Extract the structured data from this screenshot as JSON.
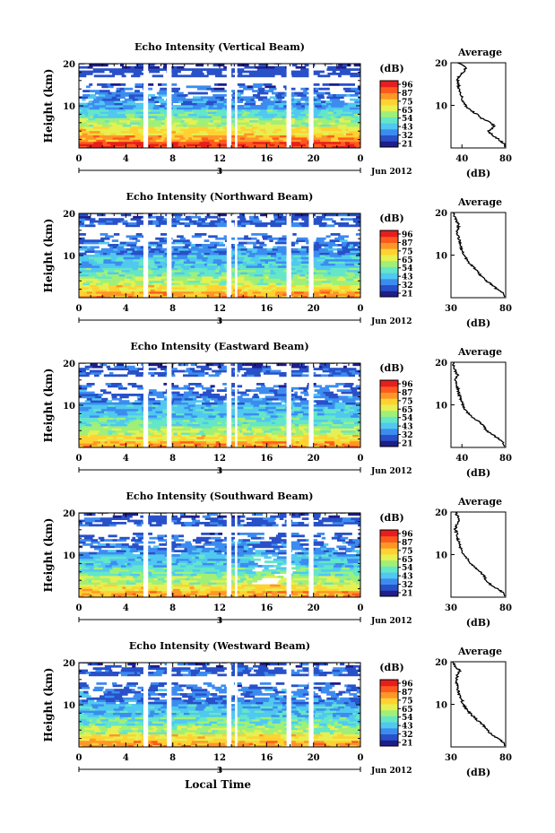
{
  "figure": {
    "xlabel": "Local Time",
    "date_label": "Jun 2012",
    "day_label": "3"
  },
  "colorbar": {
    "unit": "(dB)",
    "colors": [
      "#1e1e8c",
      "#2850c8",
      "#3c8cf0",
      "#50c8f0",
      "#64e6c8",
      "#a0f078",
      "#e6f050",
      "#ffd232",
      "#ff9628",
      "#ff5a1e",
      "#e61e1e"
    ]
  },
  "chart_data": [
    {
      "type": "heatmap",
      "title": "Echo Intensity (Vertical Beam)",
      "ylabel": "Height (km)",
      "xlim": [
        0,
        24
      ],
      "ylim": [
        0,
        20
      ],
      "xticks": [
        "0",
        "4",
        "8",
        "12",
        "16",
        "20",
        "0"
      ],
      "yticks": [
        "10",
        "20"
      ],
      "colorbar": {
        "unit": "(dB)",
        "ticks": [
          "96",
          "87",
          "75",
          "65",
          "54",
          "43",
          "32",
          "21"
        ]
      },
      "data_gaps_hours": [
        [
          5.5,
          5.9
        ],
        [
          7.5,
          7.9
        ],
        [
          12.6,
          13.0
        ],
        [
          13.3,
          13.5
        ],
        [
          17.7,
          18.1
        ],
        [
          19.6,
          20.0
        ]
      ],
      "profile": {
        "title": "Average",
        "xlabel": "(dB)",
        "xlim": [
          30,
          80
        ],
        "xticks": [
          "40",
          "80"
        ],
        "yticks": [
          "10",
          "20"
        ],
        "height_km": [
          1,
          2,
          3,
          4,
          5,
          6,
          7,
          8,
          9,
          10,
          11,
          12,
          13,
          14,
          15,
          16,
          17,
          18,
          19,
          20
        ],
        "db": [
          78,
          74,
          68,
          64,
          70,
          66,
          58,
          53,
          47,
          43,
          41,
          40,
          38,
          37,
          37,
          36,
          38,
          42,
          44,
          36
        ]
      }
    },
    {
      "type": "heatmap",
      "title": "Echo Intensity (Northward Beam)",
      "ylabel": "Height (km)",
      "xlim": [
        0,
        24
      ],
      "ylim": [
        0,
        20
      ],
      "xticks": [
        "0",
        "4",
        "8",
        "12",
        "16",
        "20",
        "0"
      ],
      "yticks": [
        "10",
        "20"
      ],
      "colorbar": {
        "unit": "(dB)",
        "ticks": [
          "96",
          "87",
          "75",
          "65",
          "54",
          "43",
          "32",
          "21"
        ]
      },
      "data_gaps_hours": [
        [
          5.5,
          5.9
        ],
        [
          7.5,
          7.9
        ],
        [
          12.6,
          13.0
        ],
        [
          13.3,
          13.5
        ],
        [
          17.7,
          18.1
        ],
        [
          19.6,
          20.0
        ]
      ],
      "profile": {
        "title": "Average",
        "xlabel": "(dB)",
        "xlim": [
          30,
          80
        ],
        "xticks": [
          "30",
          "80"
        ],
        "yticks": [
          "10",
          "20"
        ],
        "height_km": [
          1,
          2,
          3,
          4,
          5,
          6,
          7,
          8,
          9,
          10,
          11,
          12,
          13,
          14,
          15,
          16,
          17,
          18,
          19,
          20
        ],
        "db": [
          78,
          72,
          68,
          62,
          58,
          55,
          51,
          47,
          44,
          42,
          40,
          39,
          38,
          37,
          36,
          36,
          37,
          35,
          33,
          32
        ]
      }
    },
    {
      "type": "heatmap",
      "title": "Echo Intensity (Eastward Beam)",
      "ylabel": "Height (km)",
      "xlim": [
        0,
        24
      ],
      "ylim": [
        0,
        20
      ],
      "xticks": [
        "0",
        "4",
        "8",
        "12",
        "16",
        "20",
        "0"
      ],
      "yticks": [
        "10",
        "20"
      ],
      "colorbar": {
        "unit": "(dB)",
        "ticks": [
          "96",
          "87",
          "75",
          "65",
          "54",
          "43",
          "32",
          "21"
        ]
      },
      "data_gaps_hours": [
        [
          5.5,
          5.9
        ],
        [
          7.5,
          7.9
        ],
        [
          12.6,
          13.0
        ],
        [
          13.3,
          13.5
        ],
        [
          17.7,
          18.1
        ],
        [
          19.6,
          20.0
        ]
      ],
      "profile": {
        "title": "Average",
        "xlabel": "(dB)",
        "xlim": [
          30,
          80
        ],
        "xticks": [
          "40",
          "80"
        ],
        "yticks": [
          "10",
          "20"
        ],
        "height_km": [
          1,
          2,
          3,
          4,
          5,
          6,
          7,
          8,
          9,
          10,
          11,
          12,
          13,
          14,
          15,
          16,
          17,
          18,
          19,
          20
        ],
        "db": [
          78,
          74,
          68,
          62,
          60,
          56,
          50,
          46,
          43,
          41,
          39,
          38,
          37,
          36,
          35,
          34,
          36,
          34,
          33,
          32
        ]
      }
    },
    {
      "type": "heatmap",
      "title": "Echo Intensity (Southward Beam)",
      "ylabel": "Height (km)",
      "xlim": [
        0,
        24
      ],
      "ylim": [
        0,
        20
      ],
      "xticks": [
        "0",
        "4",
        "8",
        "12",
        "16",
        "20",
        "0"
      ],
      "yticks": [
        "10",
        "20"
      ],
      "colorbar": {
        "unit": "(dB)",
        "ticks": [
          "96",
          "87",
          "75",
          "65",
          "54",
          "43",
          "32",
          "21"
        ]
      },
      "data_gaps_hours": [
        [
          5.5,
          5.9
        ],
        [
          7.5,
          7.9
        ],
        [
          12.6,
          13.0
        ],
        [
          13.3,
          13.5
        ],
        [
          17.7,
          18.1
        ],
        [
          19.6,
          20.0
        ]
      ],
      "profile": {
        "title": "Average",
        "xlabel": "(dB)",
        "xlim": [
          30,
          80
        ],
        "xticks": [
          "30",
          "80"
        ],
        "yticks": [
          "10",
          "20"
        ],
        "height_km": [
          1,
          2,
          3,
          4,
          5,
          6,
          7,
          8,
          9,
          10,
          11,
          12,
          13,
          14,
          15,
          16,
          17,
          18,
          19,
          20
        ],
        "db": [
          78,
          72,
          66,
          62,
          60,
          57,
          52,
          48,
          45,
          42,
          40,
          38,
          37,
          36,
          35,
          34,
          35,
          37,
          36,
          34
        ]
      }
    },
    {
      "type": "heatmap",
      "title": "Echo Intensity (Westward Beam)",
      "ylabel": "Height (km)",
      "xlim": [
        0,
        24
      ],
      "ylim": [
        0,
        20
      ],
      "xticks": [
        "0",
        "4",
        "8",
        "12",
        "16",
        "20",
        "0"
      ],
      "yticks": [
        "10",
        "20"
      ],
      "colorbar": {
        "unit": "(dB)",
        "ticks": [
          "96",
          "87",
          "75",
          "65",
          "54",
          "43",
          "32",
          "21"
        ]
      },
      "data_gaps_hours": [
        [
          5.5,
          5.9
        ],
        [
          7.5,
          7.9
        ],
        [
          12.6,
          13.0
        ],
        [
          13.3,
          13.5
        ],
        [
          17.7,
          18.1
        ],
        [
          19.6,
          20.0
        ]
      ],
      "profile": {
        "title": "Average",
        "xlabel": "(dB)",
        "xlim": [
          30,
          80
        ],
        "xticks": [
          "30",
          "80"
        ],
        "yticks": [
          "10",
          "20"
        ],
        "height_km": [
          1,
          2,
          3,
          4,
          5,
          6,
          7,
          8,
          9,
          10,
          11,
          12,
          13,
          14,
          15,
          16,
          17,
          18,
          19,
          20
        ],
        "db": [
          78,
          73,
          67,
          63,
          60,
          55,
          51,
          47,
          44,
          41,
          40,
          38,
          37,
          36,
          35,
          35,
          36,
          38,
          33,
          32
        ]
      }
    }
  ]
}
